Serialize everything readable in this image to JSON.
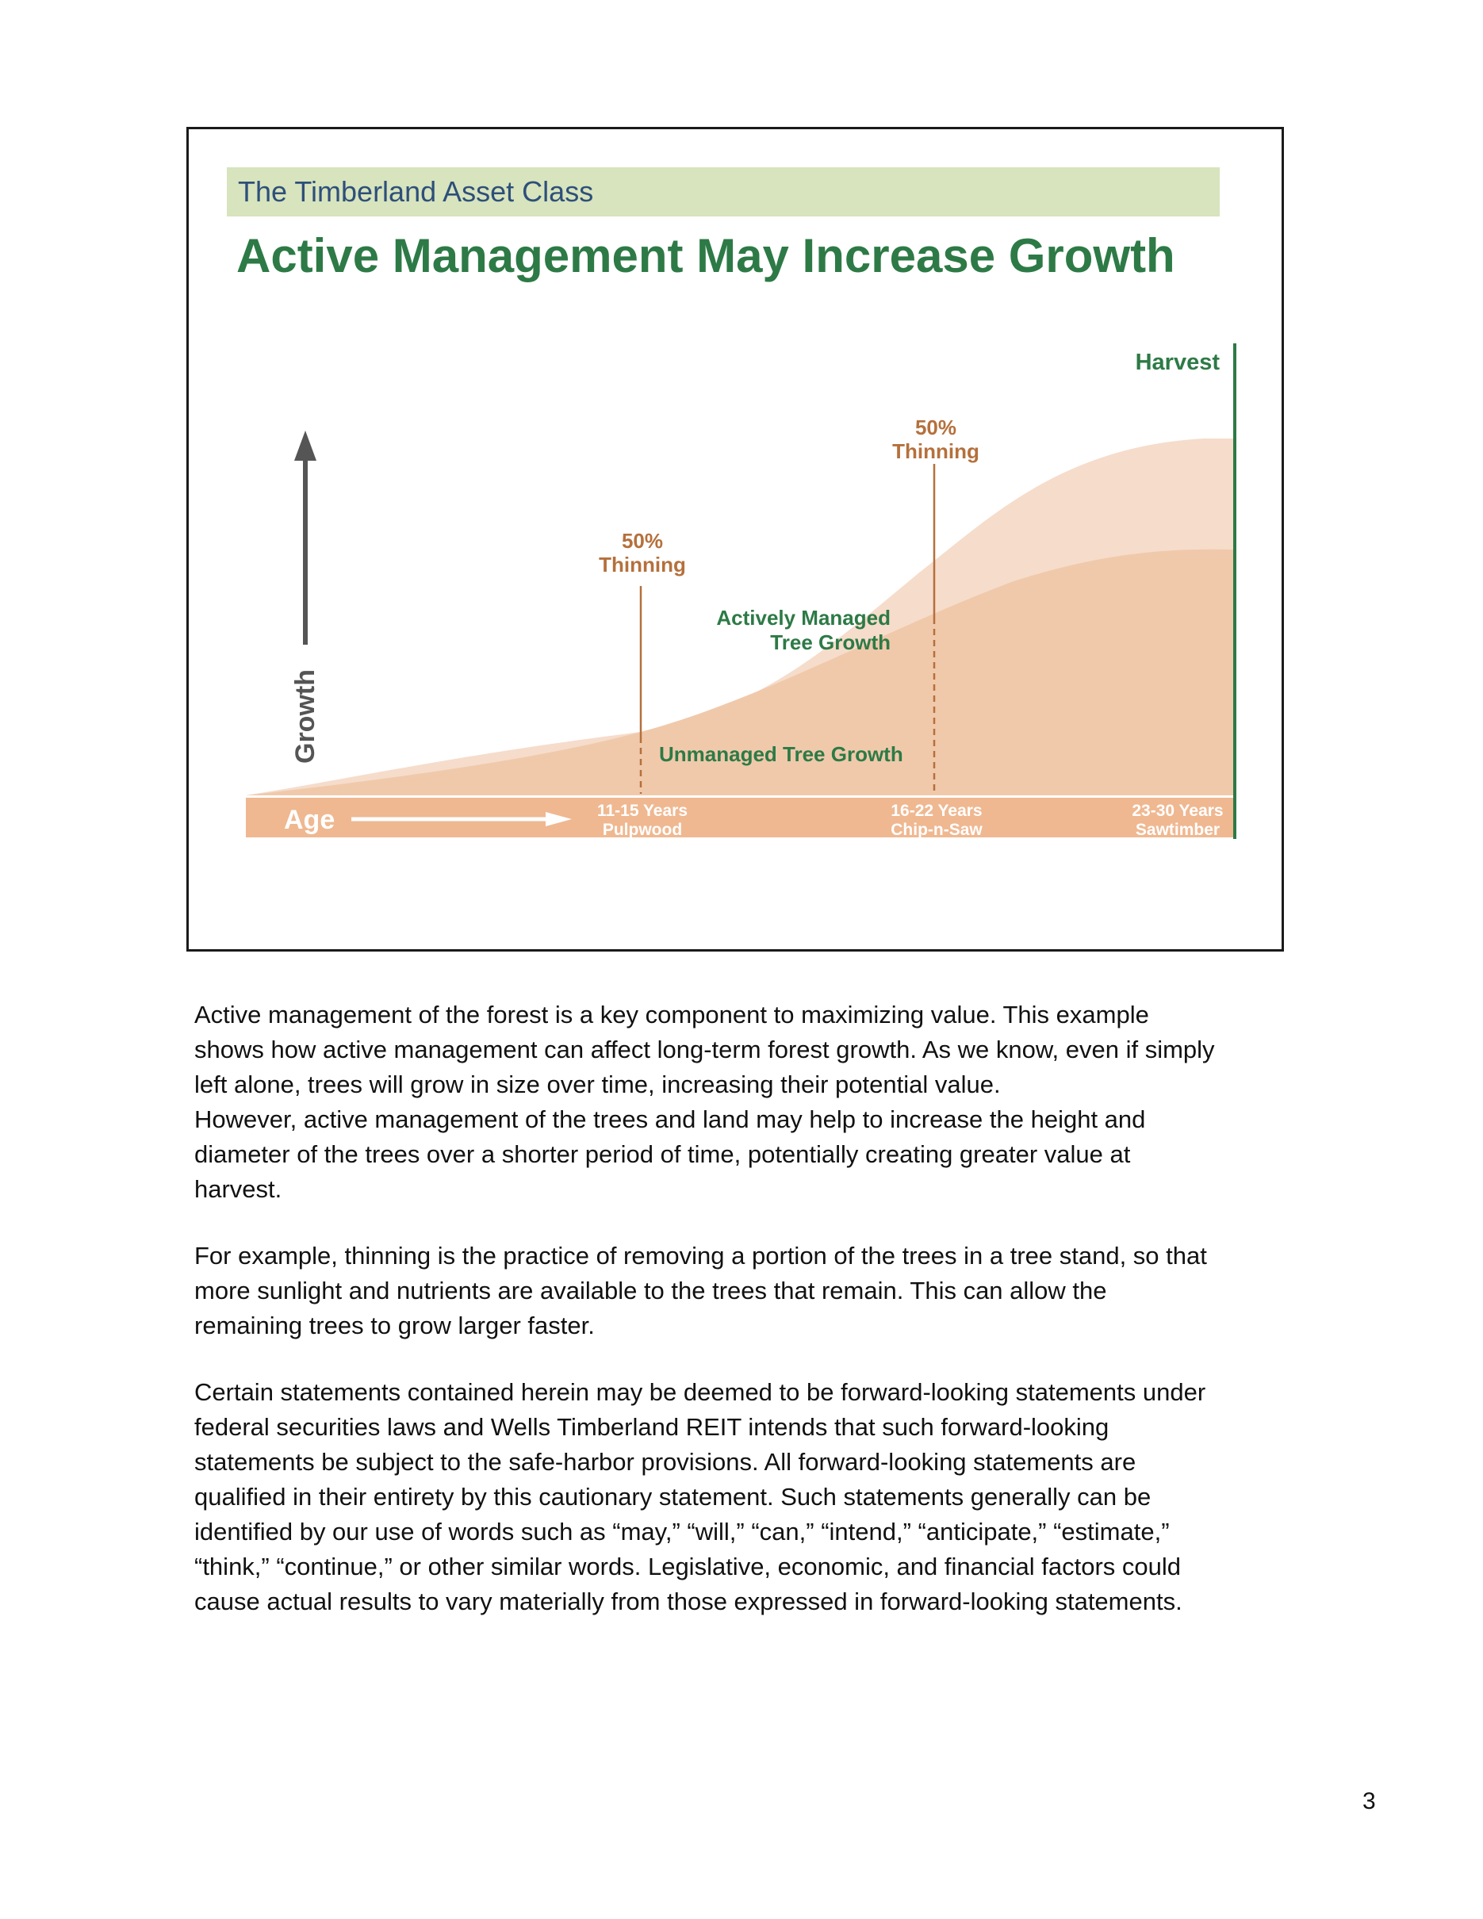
{
  "slide": {
    "kicker": "The Timberland Asset Class",
    "headline": "Active Management May Increase Growth"
  },
  "chart_data": {
    "type": "area",
    "title": "",
    "xlabel": "Age",
    "ylabel": "Growth",
    "x_categories": [
      {
        "line1": "11-15 Years",
        "line2": "Pulpwood"
      },
      {
        "line1": "16-22 Years",
        "line2": "Chip-n-Saw"
      },
      {
        "line1": "23-30 Years",
        "line2": "Sawtimber"
      }
    ],
    "series": [
      {
        "name": "Actively Managed Tree Growth",
        "color": "#f6dccb"
      },
      {
        "name": "Unmanaged Tree Growth",
        "color": "#f0c9ab"
      }
    ],
    "annotations": [
      {
        "line1": "50%",
        "line2": "Thinning",
        "color": "#b5703c"
      },
      {
        "line1": "50%",
        "line2": "Thinning",
        "color": "#b5703c"
      },
      {
        "line1": "Harvest",
        "color": "#2d7a46"
      }
    ],
    "series_label_color": "#2d7a46",
    "age_band_color": "#efb891",
    "axis_arrow_color": "#555555",
    "grid": false
  },
  "body": {
    "paragraph1": [
      "Active management of the forest is a key component to maximizing value.  This example",
      "shows how active management can affect long-term forest growth. As we know, even if simply",
      "left alone, trees will grow in size over time, increasing their potential value.",
      "However, active management of the trees and land may help to increase the height and",
      "diameter of the trees over a shorter period of time, potentially creating greater value at",
      "harvest."
    ],
    "paragraph2": [
      "For example, thinning is the practice of removing a portion of the trees in a tree stand, so that",
      "more sunlight and nutrients are available to the trees that remain. This can allow the",
      "remaining trees to grow larger faster."
    ],
    "paragraph3": [
      "Certain statements contained herein may be deemed to be forward-looking statements under",
      "federal securities laws and Wells Timberland REIT intends that such forward-looking",
      "statements be subject to the safe-harbor provisions.  All forward-looking statements are",
      "qualified in their entirety by this cautionary statement.  Such statements generally can be",
      "identified by our use of words such as “may,” “will,” “can,” “intend,” “anticipate,” “estimate,”",
      "“think,” “continue,” or other similar words.  Legislative, economic, and financial factors could",
      "cause actual results to vary materially from those expressed in forward-looking statements."
    ]
  },
  "page_number": "3"
}
